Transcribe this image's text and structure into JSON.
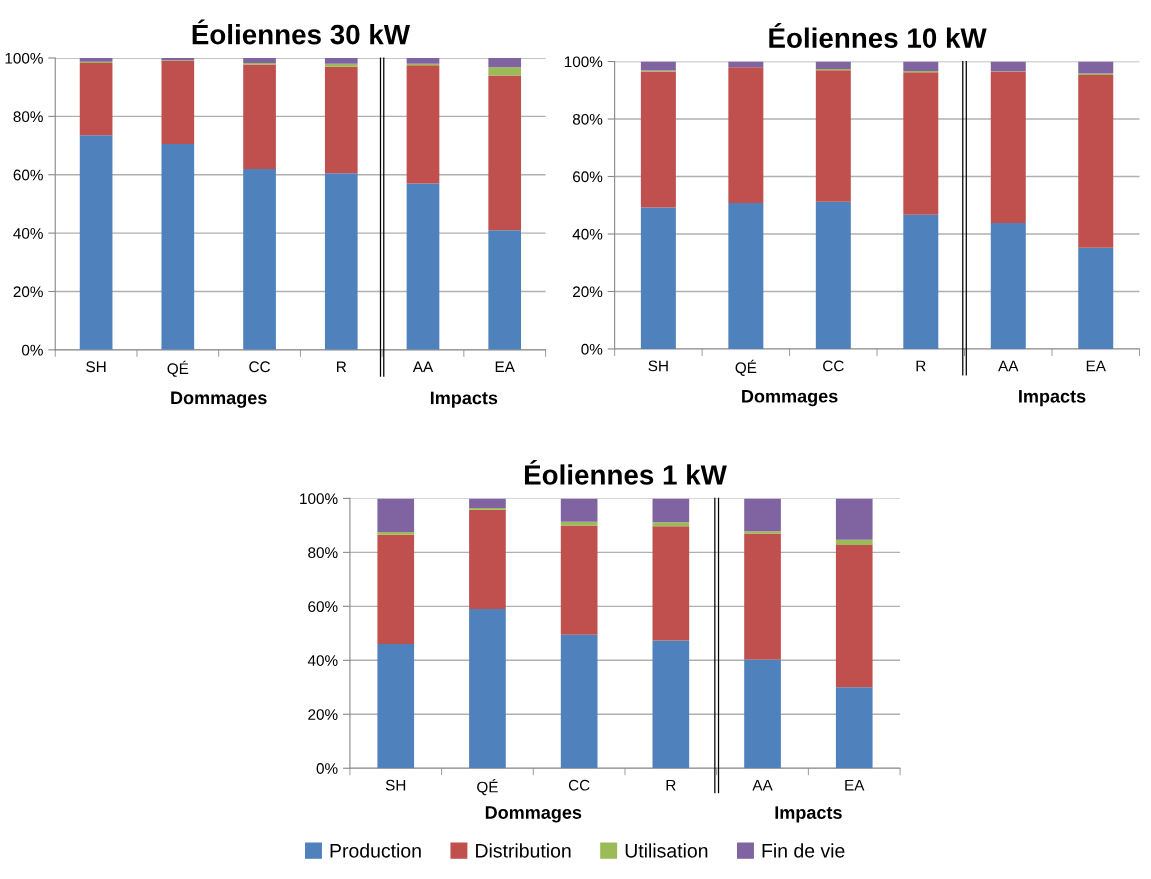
{
  "chart_data": [
    {
      "type": "bar",
      "title": "Éoliennes 30 kW",
      "stacked": true,
      "categories": [
        "SH",
        "QÉ",
        "CC",
        "R",
        "AA",
        "EA"
      ],
      "ylim": [
        0,
        100
      ],
      "yticks": [
        {
          "value": 0,
          "label": "0%"
        },
        {
          "value": 20,
          "label": "20%"
        },
        {
          "value": 40,
          "label": "40%"
        },
        {
          "value": 60,
          "label": "60%"
        },
        {
          "value": 80,
          "label": "80%"
        },
        {
          "value": 100,
          "label": "100%"
        }
      ],
      "grid": "y",
      "annotations": [
        "Dommages",
        "Impacts"
      ],
      "series": [
        {
          "color": "#4f81bd",
          "values": [
            73.5,
            70.5,
            62,
            60.5,
            57,
            41
          ]
        },
        {
          "color": "#c0504d",
          "values": [
            24.8,
            28.5,
            35.8,
            36.5,
            40.5,
            53
          ]
        },
        {
          "color": "#9bbb59",
          "values": [
            0.4,
            0.2,
            0.5,
            1.0,
            0.5,
            2.8
          ]
        },
        {
          "color": "#8064a2",
          "values": [
            1.3,
            0.8,
            1.7,
            2.0,
            2.0,
            3.2
          ]
        }
      ]
    },
    {
      "type": "bar",
      "title": "Éoliennes 10 kW",
      "stacked": true,
      "categories": [
        "SH",
        "QÉ",
        "CC",
        "R",
        "AA",
        "EA"
      ],
      "ylim": [
        0,
        100
      ],
      "yticks": [
        {
          "value": 0,
          "label": "0%"
        },
        {
          "value": 20,
          "label": "20%"
        },
        {
          "value": 40,
          "label": "40%"
        },
        {
          "value": 60,
          "label": "60%"
        },
        {
          "value": 80,
          "label": "80%"
        },
        {
          "value": 100,
          "label": "100%"
        }
      ],
      "grid": "y",
      "annotations": [
        "Dommages",
        "Impacts"
      ],
      "series": [
        {
          "color": "#4f81bd",
          "values": [
            49.2,
            50.8,
            51.2,
            46.7,
            43.8,
            35.2
          ]
        },
        {
          "color": "#c0504d",
          "values": [
            47.3,
            47.2,
            45.8,
            49.6,
            52.7,
            60.1
          ]
        },
        {
          "color": "#9bbb59",
          "values": [
            0.4,
            null,
            0.4,
            0.4,
            0.1,
            0.5
          ]
        },
        {
          "color": "#8064a2",
          "values": [
            3.1,
            2.0,
            2.6,
            3.3,
            3.4,
            4.2
          ]
        }
      ]
    },
    {
      "type": "bar",
      "title": "Éoliennes 1 kW",
      "stacked": true,
      "categories": [
        "SH",
        "QÉ",
        "CC",
        "R",
        "AA",
        "EA"
      ],
      "ylim": [
        0,
        100
      ],
      "yticks": [
        {
          "value": 0,
          "label": "0%"
        },
        {
          "value": 20,
          "label": "20%"
        },
        {
          "value": 40,
          "label": "40%"
        },
        {
          "value": 60,
          "label": "60%"
        },
        {
          "value": 80,
          "label": "80%"
        },
        {
          "value": 100,
          "label": "100%"
        }
      ],
      "grid": "y",
      "legend": "bottom",
      "annotations": [
        "Dommages",
        "Impacts"
      ],
      "series": [
        {
          "name": "Production",
          "color": "#4f81bd",
          "values": [
            46,
            59,
            49.5,
            47.3,
            40.3,
            30
          ]
        },
        {
          "name": "Distribution",
          "color": "#c0504d",
          "values": [
            40.5,
            36.8,
            40.5,
            42.4,
            46.7,
            52.7
          ]
        },
        {
          "name": "Utilisation",
          "color": "#9bbb59",
          "values": [
            1.0,
            0.6,
            1.3,
            1.5,
            0.8,
            2.0
          ]
        },
        {
          "name": "Fin de vie",
          "color": "#8064a2",
          "values": [
            12.5,
            3.6,
            8.7,
            8.8,
            12.2,
            15.3
          ]
        }
      ]
    }
  ]
}
